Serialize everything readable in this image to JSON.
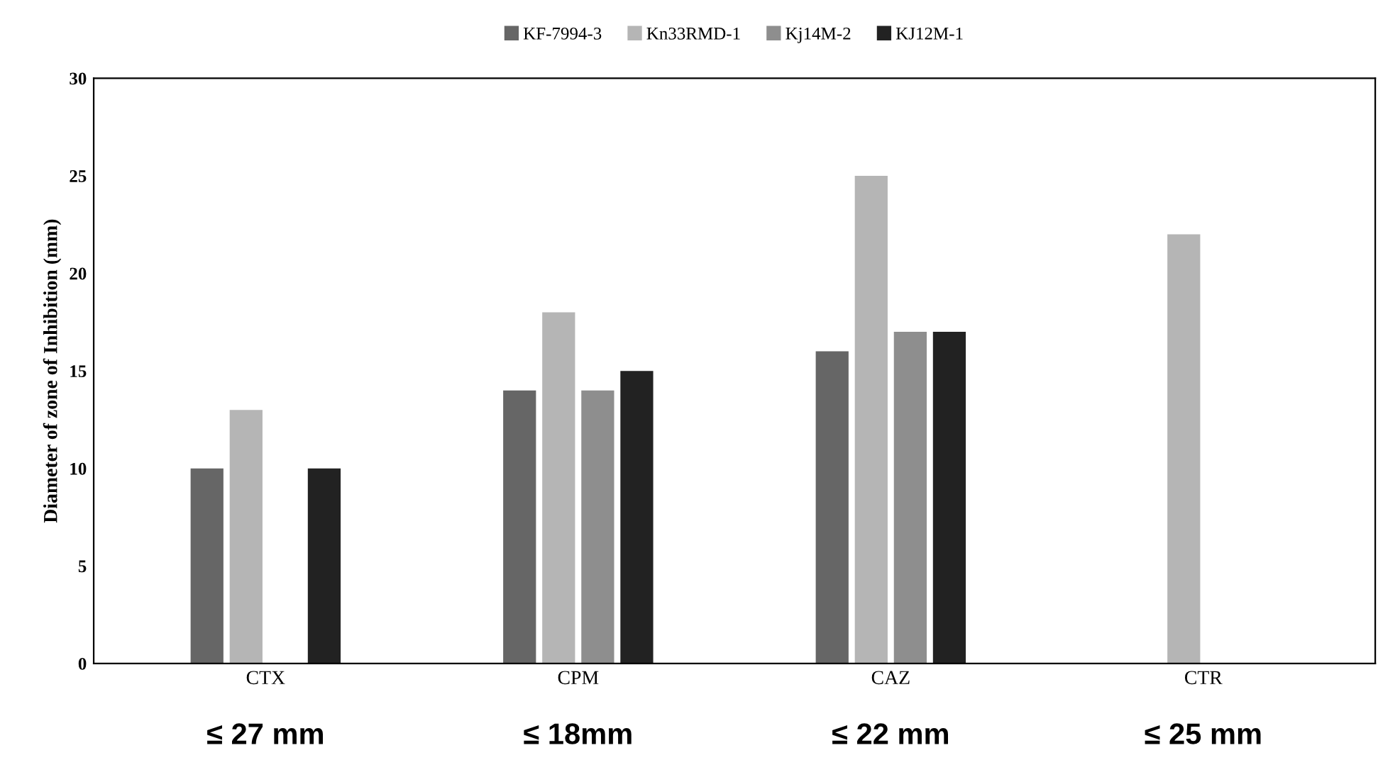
{
  "chart_data": {
    "type": "bar",
    "categories": [
      "CTX",
      "CPM",
      "CAZ",
      "CTR"
    ],
    "series": [
      {
        "name": "KF-7994-3",
        "color": "#666666",
        "values": [
          10,
          14,
          16,
          null
        ]
      },
      {
        "name": "Kn33RMD-1",
        "color": "#b5b5b5",
        "values": [
          13,
          18,
          25,
          22
        ]
      },
      {
        "name": "Kj14M-2",
        "color": "#8e8e8e",
        "values": [
          null,
          14,
          17,
          null
        ]
      },
      {
        "name": "KJ12M-1",
        "color": "#222222",
        "values": [
          10,
          15,
          17,
          null
        ]
      }
    ],
    "ylabel": "Diameter of zone of Inhibition (mm)",
    "ylim": [
      0,
      30
    ],
    "yticks": [
      0,
      5,
      10,
      15,
      20,
      25,
      30
    ],
    "annotations": [
      "≤ 27 mm",
      "≤ 18mm",
      "≤ 22 mm",
      "≤ 25 mm"
    ],
    "legend": "top",
    "grid": false
  }
}
